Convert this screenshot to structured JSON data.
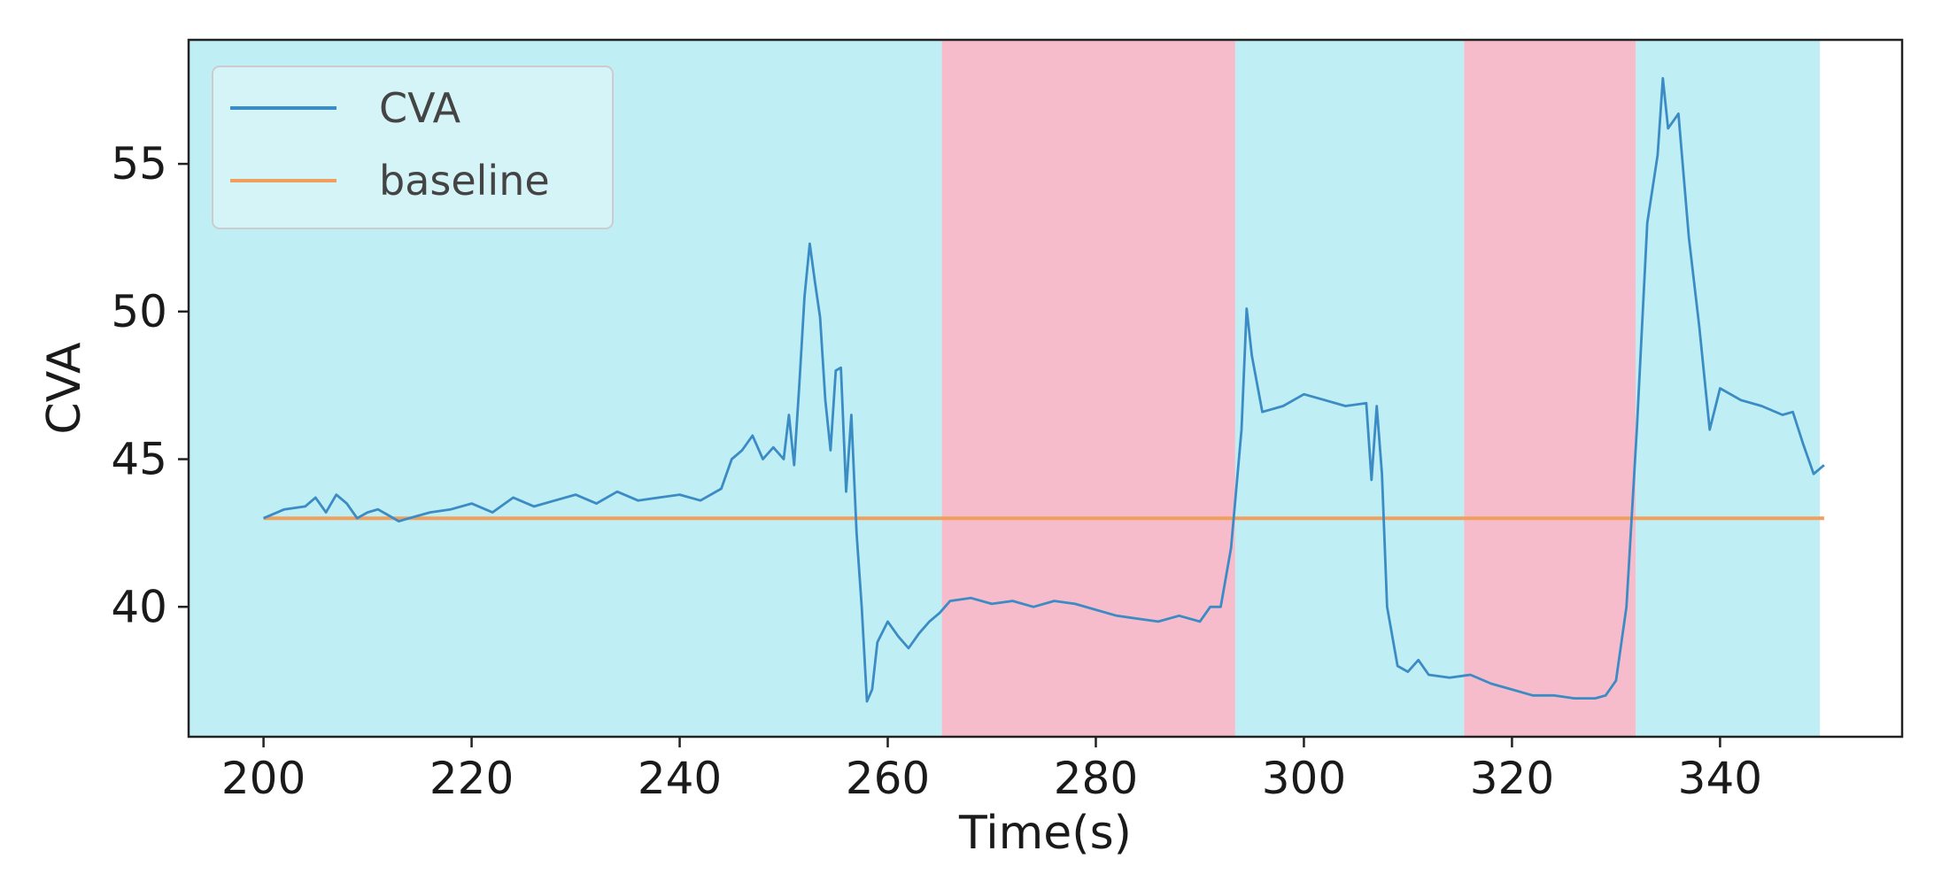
{
  "chart_data": {
    "type": "line",
    "title": "",
    "xlabel": "Time(s)",
    "ylabel": "CVA",
    "xlim": [
      192.8,
      357.5
    ],
    "ylim": [
      35.6,
      59.2
    ],
    "xticks": [
      200,
      220,
      240,
      260,
      280,
      300,
      320,
      340
    ],
    "yticks": [
      40,
      45,
      50,
      55
    ],
    "grid": false,
    "legend_position": "top-left",
    "shaded_regions": [
      {
        "start": 192.8,
        "end": 265.2,
        "color": "#bfeef5"
      },
      {
        "start": 265.2,
        "end": 293.4,
        "color": "#f7bccb"
      },
      {
        "start": 293.4,
        "end": 315.4,
        "color": "#bfeef5"
      },
      {
        "start": 315.4,
        "end": 331.9,
        "color": "#f7bccb"
      },
      {
        "start": 331.9,
        "end": 349.6,
        "color": "#bfeef5"
      }
    ],
    "series": [
      {
        "name": "CVA",
        "color": "#3b8bc4",
        "x": [
          200,
          202,
          204,
          205,
          206,
          207,
          208,
          209,
          210,
          211,
          212,
          213,
          214,
          216,
          218,
          220,
          222,
          224,
          226,
          228,
          230,
          232,
          234,
          236,
          238,
          240,
          242,
          244,
          245,
          246,
          247,
          248,
          249,
          250,
          250.5,
          251,
          251.5,
          252,
          252.5,
          253,
          253.5,
          254,
          254.5,
          255,
          255.5,
          256,
          256.5,
          257,
          257.5,
          258,
          258.5,
          259,
          260,
          261,
          262,
          263,
          264,
          265,
          266,
          268,
          270,
          272,
          274,
          276,
          278,
          280,
          282,
          284,
          286,
          288,
          290,
          291,
          292,
          293,
          294,
          294.5,
          295,
          296,
          298,
          300,
          302,
          304,
          306,
          306.5,
          307,
          307.5,
          308,
          309,
          310,
          311,
          312,
          314,
          316,
          318,
          320,
          322,
          324,
          326,
          328,
          329,
          330,
          331,
          332,
          333,
          334,
          334.5,
          335,
          336,
          337,
          338,
          339,
          340,
          342,
          344,
          346,
          347,
          348,
          349,
          350
        ],
        "y": [
          43.0,
          43.3,
          43.4,
          43.7,
          43.2,
          43.8,
          43.5,
          43.0,
          43.2,
          43.3,
          43.1,
          42.9,
          43.0,
          43.2,
          43.3,
          43.5,
          43.2,
          43.7,
          43.4,
          43.6,
          43.8,
          43.5,
          43.9,
          43.6,
          43.7,
          43.8,
          43.6,
          44.0,
          45.0,
          45.3,
          45.8,
          45.0,
          45.4,
          45.0,
          46.5,
          44.8,
          47.5,
          50.5,
          52.3,
          51.0,
          49.8,
          47.0,
          45.3,
          48.0,
          48.1,
          43.9,
          46.5,
          42.5,
          40.0,
          36.8,
          37.2,
          38.8,
          39.5,
          39.0,
          38.6,
          39.1,
          39.5,
          39.8,
          40.2,
          40.3,
          40.1,
          40.2,
          40.0,
          40.2,
          40.1,
          39.9,
          39.7,
          39.6,
          39.5,
          39.7,
          39.5,
          40.0,
          40.0,
          42.0,
          46.0,
          50.1,
          48.5,
          46.6,
          46.8,
          47.2,
          47.0,
          46.8,
          46.9,
          44.3,
          46.8,
          44.5,
          40.0,
          38.0,
          37.8,
          38.2,
          37.7,
          37.6,
          37.7,
          37.4,
          37.2,
          37.0,
          37.0,
          36.9,
          36.9,
          37.0,
          37.5,
          40.0,
          46.0,
          53.0,
          55.3,
          57.9,
          56.2,
          56.7,
          52.5,
          49.5,
          46.0,
          47.4,
          47.0,
          46.8,
          46.5,
          46.6,
          45.5,
          44.5,
          44.8
        ]
      },
      {
        "name": "baseline",
        "color": "#f0a05c",
        "x": [
          200,
          350
        ],
        "y": [
          43.0,
          43.0
        ]
      }
    ]
  }
}
